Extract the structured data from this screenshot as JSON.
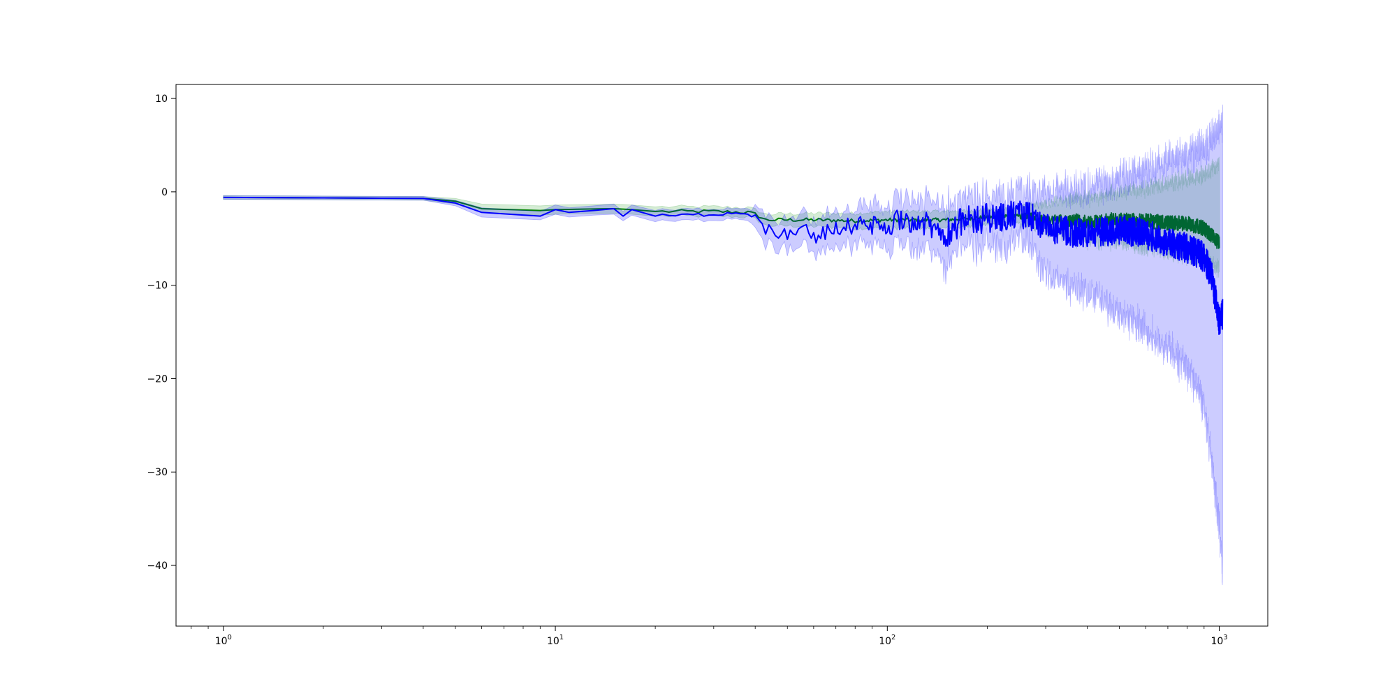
{
  "chart_data": {
    "type": "line",
    "title": "",
    "xlabel": "",
    "ylabel": "",
    "xscale": "log",
    "xlim": [
      0.72,
      1400
    ],
    "ylim": [
      -46.5,
      11.5
    ],
    "grid": false,
    "legend": "none",
    "x_ticks": [
      {
        "base": "10",
        "exp": "0",
        "value": 1
      },
      {
        "base": "10",
        "exp": "1",
        "value": 10
      },
      {
        "base": "10",
        "exp": "2",
        "value": 100
      },
      {
        "base": "10",
        "exp": "3",
        "value": 1000
      }
    ],
    "y_ticks": [
      {
        "label": "10",
        "value": 10
      },
      {
        "label": "0",
        "value": 0
      },
      {
        "label": "−10",
        "value": -10
      },
      {
        "label": "−20",
        "value": -20
      },
      {
        "label": "−30",
        "value": -30
      },
      {
        "label": "−40",
        "value": -40
      }
    ],
    "series": [
      {
        "color": "#008000",
        "band_color": "#2ca02c",
        "x": [
          1,
          4,
          5,
          6,
          9,
          10,
          15,
          17,
          20,
          30,
          38,
          40,
          43,
          60,
          80,
          100,
          150,
          200,
          250,
          270,
          300,
          400,
          500,
          600,
          700,
          800,
          900,
          1000
        ],
        "y": [
          -0.6,
          -0.7,
          -1.0,
          -1.8,
          -2.0,
          -1.9,
          -1.8,
          -1.9,
          -2.1,
          -2.1,
          -2.2,
          -2.4,
          -3.0,
          -3.0,
          -3.1,
          -3.0,
          -3.0,
          -2.7,
          -2.6,
          -2.5,
          -3.0,
          -3.2,
          -3.0,
          -3.1,
          -3.3,
          -3.4,
          -3.9,
          -5.5
        ],
        "low": [
          -0.8,
          -0.9,
          -1.3,
          -2.2,
          -2.5,
          -2.4,
          -2.3,
          -2.4,
          -2.6,
          -2.6,
          -2.7,
          -2.9,
          -3.6,
          -3.7,
          -3.9,
          -3.9,
          -3.9,
          -3.5,
          -3.4,
          -3.4,
          -4.0,
          -4.8,
          -5.0,
          -5.5,
          -6.0,
          -6.5,
          -7.0,
          -8.0
        ],
        "high": [
          -0.4,
          -0.5,
          -0.7,
          -1.3,
          -1.5,
          -1.4,
          -1.3,
          -1.4,
          -1.6,
          -1.6,
          -1.7,
          -1.9,
          -2.4,
          -2.3,
          -2.3,
          -2.1,
          -2.1,
          -1.9,
          -1.8,
          -1.6,
          -1.5,
          -1.0,
          -0.5,
          0.0,
          0.5,
          1.0,
          1.5,
          2.5
        ],
        "noise_from": 250,
        "noise_amp": 0.8,
        "band_noise_amp": 1.5
      },
      {
        "color": "#0000ff",
        "band_color": "#0000ff",
        "x": [
          1,
          4,
          5,
          6,
          9,
          10,
          11,
          13,
          15,
          16,
          17,
          20,
          30,
          35,
          38,
          40,
          43,
          50,
          55,
          60,
          70,
          80,
          100,
          110,
          130,
          150,
          160,
          180,
          200,
          250,
          270,
          300,
          400,
          500,
          600,
          700,
          800,
          900,
          950,
          1000,
          1024
        ],
        "y": [
          -0.6,
          -0.7,
          -1.2,
          -2.2,
          -2.6,
          -1.9,
          -2.2,
          -2.0,
          -1.8,
          -2.6,
          -1.9,
          -2.6,
          -2.4,
          -2.2,
          -2.3,
          -2.7,
          -4.0,
          -4.5,
          -3.6,
          -4.8,
          -4.0,
          -3.5,
          -3.8,
          -2.8,
          -3.5,
          -4.5,
          -3.5,
          -3.0,
          -2.8,
          -2.5,
          -2.6,
          -4.0,
          -4.5,
          -4.0,
          -4.5,
          -5.5,
          -6.0,
          -7.0,
          -9.0,
          -14.0,
          -13.0
        ],
        "low": [
          -0.8,
          -0.9,
          -1.5,
          -2.7,
          -3.0,
          -2.4,
          -2.7,
          -2.5,
          -2.4,
          -3.1,
          -2.5,
          -3.2,
          -3.0,
          -2.8,
          -3.0,
          -3.4,
          -5.2,
          -5.8,
          -5.0,
          -6.0,
          -5.5,
          -5.0,
          -5.5,
          -4.5,
          -5.5,
          -7.0,
          -5.5,
          -5.0,
          -4.8,
          -4.5,
          -5.0,
          -8.0,
          -10.0,
          -12.0,
          -14.0,
          -16.0,
          -18.0,
          -22.0,
          -28.0,
          -35.0,
          -40.0
        ],
        "high": [
          -0.4,
          -0.5,
          -0.9,
          -1.7,
          -2.1,
          -1.4,
          -1.7,
          -1.5,
          -1.3,
          -2.1,
          -1.4,
          -2.0,
          -1.8,
          -1.7,
          -1.7,
          -2.0,
          -2.8,
          -3.2,
          -2.4,
          -3.5,
          -2.6,
          -2.2,
          -2.2,
          -1.3,
          -1.7,
          -2.2,
          -1.8,
          -1.4,
          -1.3,
          -1.1,
          -1.0,
          -1.0,
          -0.5,
          0.5,
          1.5,
          2.5,
          3.0,
          4.0,
          5.0,
          6.0,
          6.5
        ],
        "noise_from": 40,
        "noise_amp": 1.6,
        "band_noise_amp": 3.5
      }
    ]
  }
}
